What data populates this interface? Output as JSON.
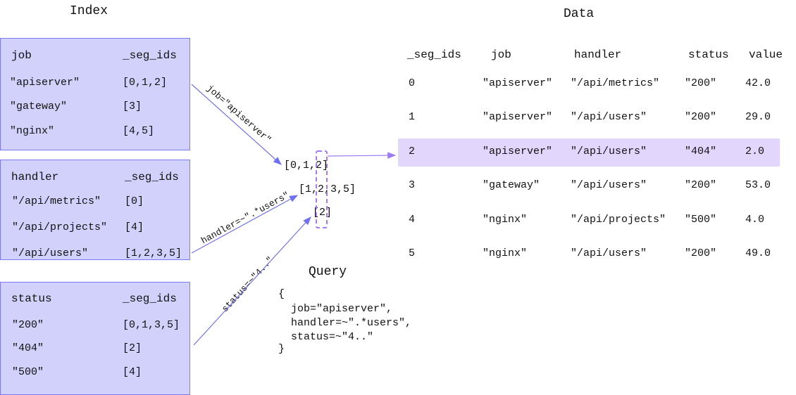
{
  "index": {
    "title": "Index",
    "tables": [
      {
        "key": "job",
        "ids_header": "_seg_ids",
        "rows": [
          [
            "\"apiserver\"",
            "[0,1,2]"
          ],
          [
            "\"gateway\"",
            "[3]"
          ],
          [
            "\"nginx\"",
            "[4,5]"
          ]
        ]
      },
      {
        "key": "handler",
        "ids_header": "_seg_ids",
        "rows": [
          [
            "\"/api/metrics\"",
            "[0]"
          ],
          [
            "\"/api/projects\"",
            "[4]"
          ],
          [
            "\"/api/users\"",
            "[1,2,3,5]"
          ]
        ]
      },
      {
        "key": "status",
        "ids_header": "_seg_ids",
        "rows": [
          [
            "\"200\"",
            "[0,1,3,5]"
          ],
          [
            "\"404\"",
            "[2]"
          ],
          [
            "\"500\"",
            "[4]"
          ]
        ]
      }
    ]
  },
  "filters": [
    "job=\"apiserver\"",
    "handler=~\".*users\"",
    "status=~\"4..\""
  ],
  "matches": [
    "[0,1,2]",
    "[1,2,3,5]",
    "[2]"
  ],
  "query": {
    "title": "Query",
    "lines": [
      "{",
      "  job=\"apiserver\",",
      "  handler=~\".*users\",",
      "  status=~\"4..\"",
      "}"
    ]
  },
  "data": {
    "title": "Data",
    "headers": [
      "_seg_ids",
      "job",
      "handler",
      "status",
      "value"
    ],
    "rows": [
      [
        "0",
        "\"apiserver\"",
        "\"/api/metrics\"",
        "\"200\"",
        "42.0"
      ],
      [
        "1",
        "\"apiserver\"",
        "\"/api/users\"",
        "\"200\"",
        "29.0"
      ],
      [
        "2",
        "\"apiserver\"",
        "\"/api/users\"",
        "\"404\"",
        "2.0"
      ],
      [
        "3",
        "\"gateway\"",
        "\"/api/users\"",
        "\"200\"",
        "53.0"
      ],
      [
        "4",
        "\"nginx\"",
        "\"/api/projects\"",
        "\"500\"",
        "4.0"
      ],
      [
        "5",
        "\"nginx\"",
        "\"/api/users\"",
        "\"200\"",
        "49.0"
      ]
    ],
    "highlighted_row": 2
  },
  "colors": {
    "box_fill": "#d1d1fc",
    "box_border": "#7a7af2",
    "arrow": "#7070f5",
    "highlight": "#e3d6fc",
    "dashed": "#a57bf5"
  }
}
